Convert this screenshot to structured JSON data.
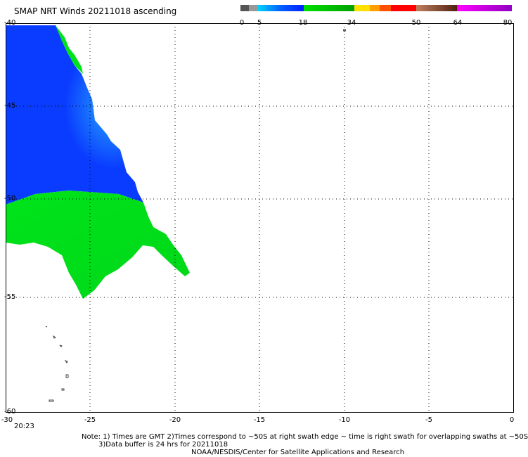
{
  "title": "SMAP NRT Winds 20211018 ascending",
  "colorbar": {
    "segments": [
      {
        "color": "#6b6b6b"
      },
      {
        "color": "#9a9a9a"
      },
      {
        "color": "#00c8ff"
      },
      {
        "color": "#0080ff"
      },
      {
        "color": "#0040ff"
      },
      {
        "color": "#00e000"
      },
      {
        "color": "#00b000"
      },
      {
        "color": "#ffe000"
      },
      {
        "color": "#ffa000"
      },
      {
        "color": "#ff6000"
      },
      {
        "color": "#ff2020"
      },
      {
        "color": "#ff0000"
      },
      {
        "color": "#c08060"
      },
      {
        "color": "#904020"
      },
      {
        "color": "#602010"
      },
      {
        "color": "#ff00ff"
      },
      {
        "color": "#9000c0"
      }
    ],
    "labels": [
      "0",
      "5",
      "18",
      "34",
      "50",
      "64",
      "80"
    ]
  },
  "axes": {
    "y_labels": [
      "-40",
      "-45",
      "-50",
      "-55",
      "-60"
    ],
    "x_labels": [
      "-30",
      "-25",
      "-20",
      "-15",
      "-10",
      "-5",
      "0"
    ]
  },
  "time_label": "20:23",
  "notes": {
    "line1": "Note: 1) Times are GMT 2)Times correspond to ~50S at right swath edge ~ time is right swath for overlapping swaths at ~50S",
    "line2": "3)Data buffer is 24 hrs for 20211018",
    "line3": "NOAA/NESDIS/Center for Satellite Applications and Research"
  },
  "colors": {
    "wind_blue": "#0a3cff",
    "wind_light_blue": "#19a0ff",
    "wind_green": "#00e31a",
    "grid": "#000000"
  }
}
